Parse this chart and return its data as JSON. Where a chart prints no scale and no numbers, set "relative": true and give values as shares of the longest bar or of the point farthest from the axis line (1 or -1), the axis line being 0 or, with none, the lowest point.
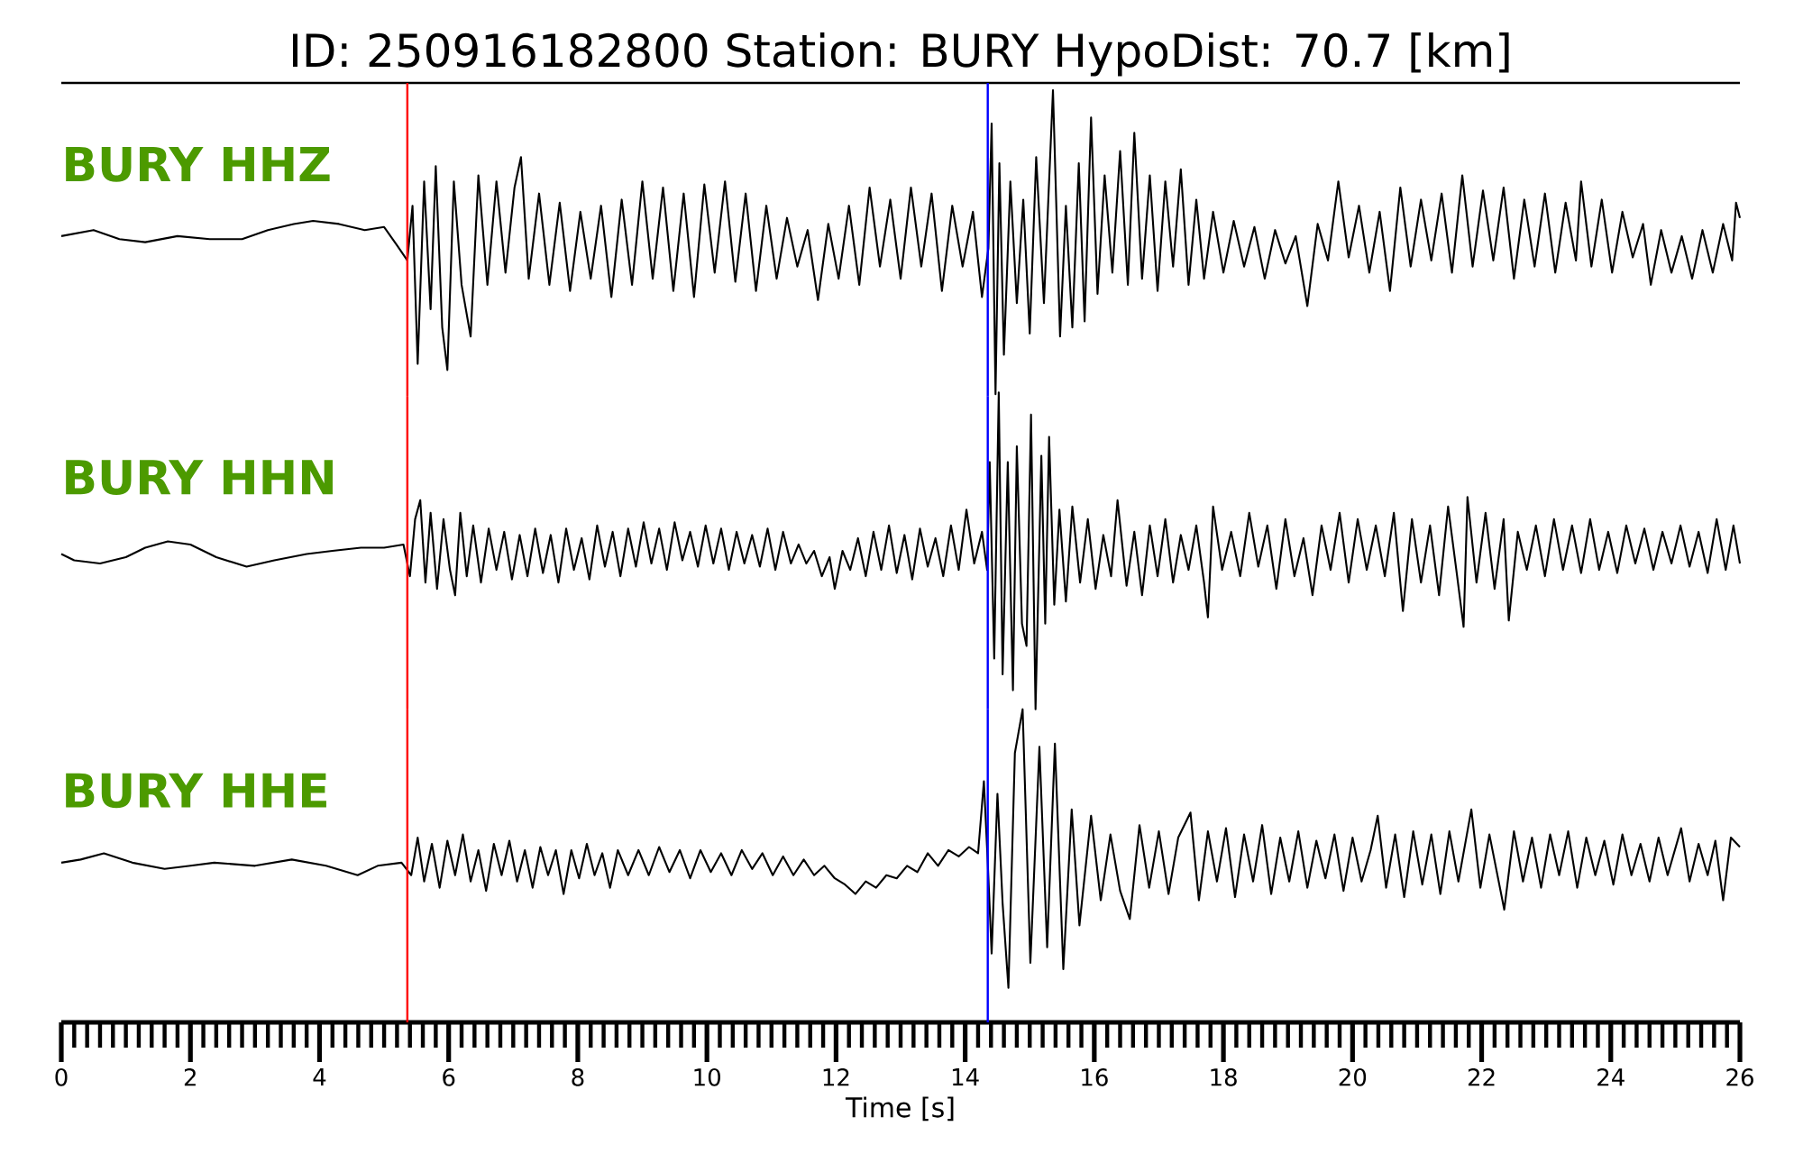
{
  "chart_data": [
    {
      "type": "line",
      "title": "ID: 250916182800   Station: BURY   HypoDist:    70.7 [km]",
      "relative": true,
      "xlim": [
        0,
        26
      ],
      "tick_labels": false,
      "ref_lines": [
        {
          "axis": "x",
          "value": 5.36,
          "color": "#ff0000"
        },
        {
          "axis": "x",
          "value": 14.35,
          "color": "#0000ff"
        }
      ],
      "x": [
        0,
        0.5,
        0.9,
        1.3,
        1.8,
        2.3,
        2.8,
        3.2,
        3.6,
        3.9,
        4.3,
        4.7,
        5.0,
        5.2,
        5.36,
        5.44,
        5.52,
        5.62,
        5.72,
        5.8,
        5.9,
        5.98,
        6.08,
        6.2,
        6.34,
        6.46,
        6.6,
        6.74,
        6.88,
        7.02,
        7.12,
        7.24,
        7.4,
        7.56,
        7.72,
        7.88,
        8.04,
        8.2,
        8.36,
        8.52,
        8.68,
        8.84,
        9.0,
        9.16,
        9.32,
        9.48,
        9.64,
        9.8,
        9.96,
        10.12,
        10.28,
        10.44,
        10.6,
        10.76,
        10.92,
        11.08,
        11.24,
        11.4,
        11.56,
        11.72,
        11.88,
        12.04,
        12.2,
        12.36,
        12.52,
        12.68,
        12.84,
        13.0,
        13.16,
        13.32,
        13.48,
        13.64,
        13.8,
        13.96,
        14.12,
        14.26,
        14.36,
        14.41,
        14.47,
        14.53,
        14.6,
        14.7,
        14.8,
        14.9,
        15.0,
        15.1,
        15.22,
        15.36,
        15.47,
        15.56,
        15.66,
        15.76,
        15.85,
        15.95,
        16.05,
        16.16,
        16.28,
        16.4,
        16.52,
        16.62,
        16.74,
        16.86,
        16.98,
        17.1,
        17.22,
        17.34,
        17.46,
        17.58,
        17.7,
        17.84,
        18.0,
        18.16,
        18.32,
        18.48,
        18.64,
        18.8,
        18.96,
        19.12,
        19.3,
        19.46,
        19.62,
        19.78,
        19.94,
        20.1,
        20.26,
        20.42,
        20.58,
        20.74,
        20.9,
        21.06,
        21.22,
        21.38,
        21.54,
        21.7,
        21.86,
        22.02,
        22.18,
        22.34,
        22.5,
        22.66,
        22.82,
        22.98,
        23.14,
        23.3,
        23.46,
        23.54,
        23.7,
        23.86,
        24.02,
        24.18,
        24.34,
        24.5,
        24.62,
        24.78,
        24.94,
        25.1,
        25.26,
        25.42,
        25.58,
        25.74,
        25.88,
        25.94,
        26.0
      ],
      "series": [
        {
          "name": "BURY HHZ",
          "color": "#000000",
          "values": [
            0.52,
            0.54,
            0.51,
            0.5,
            0.52,
            0.51,
            0.51,
            0.54,
            0.56,
            0.57,
            0.56,
            0.54,
            0.55,
            0.49,
            0.44,
            0.62,
            0.1,
            0.7,
            0.28,
            0.75,
            0.22,
            0.08,
            0.7,
            0.36,
            0.19,
            0.72,
            0.36,
            0.7,
            0.4,
            0.68,
            0.78,
            0.38,
            0.66,
            0.36,
            0.63,
            0.34,
            0.6,
            0.38,
            0.62,
            0.32,
            0.64,
            0.36,
            0.7,
            0.38,
            0.68,
            0.34,
            0.66,
            0.32,
            0.69,
            0.4,
            0.7,
            0.37,
            0.66,
            0.34,
            0.62,
            0.38,
            0.58,
            0.42,
            0.54,
            0.31,
            0.56,
            0.38,
            0.62,
            0.36,
            0.68,
            0.42,
            0.64,
            0.38,
            0.68,
            0.42,
            0.66,
            0.34,
            0.62,
            0.42,
            0.6,
            0.32,
            0.48,
            0.89,
            0.0,
            0.76,
            0.13,
            0.7,
            0.3,
            0.64,
            0.2,
            0.78,
            0.3,
            1.0,
            0.19,
            0.62,
            0.22,
            0.76,
            0.24,
            0.91,
            0.33,
            0.72,
            0.4,
            0.8,
            0.36,
            0.86,
            0.38,
            0.72,
            0.34,
            0.7,
            0.42,
            0.74,
            0.36,
            0.64,
            0.38,
            0.6,
            0.4,
            0.57,
            0.42,
            0.55,
            0.38,
            0.54,
            0.43,
            0.52,
            0.29,
            0.56,
            0.44,
            0.7,
            0.45,
            0.62,
            0.4,
            0.6,
            0.34,
            0.68,
            0.42,
            0.64,
            0.44,
            0.66,
            0.4,
            0.72,
            0.42,
            0.67,
            0.44,
            0.68,
            0.38,
            0.64,
            0.42,
            0.66,
            0.4,
            0.63,
            0.44,
            0.7,
            0.42,
            0.64,
            0.4,
            0.6,
            0.45,
            0.56,
            0.36,
            0.54,
            0.4,
            0.52,
            0.38,
            0.54,
            0.4,
            0.56,
            0.44,
            0.63,
            0.58
          ]
        }
      ]
    },
    {
      "type": "line",
      "relative": true,
      "xlim": [
        0,
        26
      ],
      "tick_labels": false,
      "ref_lines": [
        {
          "axis": "x",
          "value": 5.36,
          "color": "#ff0000"
        },
        {
          "axis": "x",
          "value": 14.35,
          "color": "#0000ff"
        }
      ],
      "x": [
        0,
        0.2,
        0.6,
        1.0,
        1.3,
        1.65,
        2.0,
        2.4,
        2.87,
        3.3,
        3.8,
        4.2,
        4.64,
        5.0,
        5.3,
        5.4,
        5.48,
        5.56,
        5.64,
        5.72,
        5.82,
        5.92,
        6.02,
        6.1,
        6.18,
        6.28,
        6.38,
        6.5,
        6.62,
        6.74,
        6.86,
        6.98,
        7.1,
        7.22,
        7.34,
        7.46,
        7.58,
        7.7,
        7.82,
        7.94,
        8.06,
        8.18,
        8.3,
        8.42,
        8.54,
        8.66,
        8.78,
        8.9,
        9.02,
        9.14,
        9.26,
        9.38,
        9.5,
        9.62,
        9.74,
        9.86,
        9.98,
        10.1,
        10.22,
        10.34,
        10.46,
        10.58,
        10.7,
        10.82,
        10.94,
        11.06,
        11.18,
        11.3,
        11.42,
        11.54,
        11.66,
        11.78,
        11.9,
        11.98,
        12.1,
        12.22,
        12.34,
        12.46,
        12.58,
        12.7,
        12.82,
        12.94,
        13.06,
        13.18,
        13.3,
        13.42,
        13.54,
        13.66,
        13.78,
        13.9,
        14.02,
        14.14,
        14.26,
        14.34,
        14.38,
        14.45,
        14.52,
        14.58,
        14.66,
        14.74,
        14.8,
        14.88,
        14.95,
        15.02,
        15.09,
        15.18,
        15.24,
        15.3,
        15.38,
        15.46,
        15.56,
        15.66,
        15.78,
        15.9,
        16.02,
        16.14,
        16.26,
        16.36,
        16.5,
        16.62,
        16.74,
        16.86,
        16.98,
        17.1,
        17.22,
        17.34,
        17.46,
        17.58,
        17.7,
        17.76,
        17.84,
        17.98,
        18.12,
        18.26,
        18.4,
        18.54,
        18.68,
        18.82,
        18.96,
        19.1,
        19.24,
        19.38,
        19.52,
        19.66,
        19.8,
        19.94,
        20.08,
        20.22,
        20.36,
        20.5,
        20.64,
        20.78,
        20.92,
        21.06,
        21.2,
        21.34,
        21.48,
        21.62,
        21.72,
        21.78,
        21.92,
        22.06,
        22.2,
        22.34,
        22.42,
        22.56,
        22.7,
        22.84,
        22.98,
        23.12,
        23.26,
        23.4,
        23.54,
        23.68,
        23.82,
        23.96,
        24.1,
        24.24,
        24.38,
        24.52,
        24.66,
        24.8,
        24.94,
        25.08,
        25.22,
        25.36,
        25.5,
        25.64,
        25.78,
        25.9,
        26.0
      ],
      "series": [
        {
          "name": "BURY HHN",
          "color": "#000000",
          "values": [
            0.49,
            0.47,
            0.46,
            0.48,
            0.51,
            0.53,
            0.52,
            0.48,
            0.45,
            0.47,
            0.49,
            0.5,
            0.51,
            0.51,
            0.52,
            0.42,
            0.6,
            0.66,
            0.4,
            0.62,
            0.38,
            0.6,
            0.44,
            0.36,
            0.62,
            0.42,
            0.58,
            0.4,
            0.57,
            0.44,
            0.56,
            0.41,
            0.55,
            0.42,
            0.57,
            0.43,
            0.55,
            0.4,
            0.57,
            0.44,
            0.54,
            0.41,
            0.58,
            0.45,
            0.56,
            0.42,
            0.57,
            0.45,
            0.59,
            0.46,
            0.57,
            0.44,
            0.59,
            0.47,
            0.56,
            0.45,
            0.58,
            0.46,
            0.57,
            0.44,
            0.56,
            0.46,
            0.55,
            0.45,
            0.57,
            0.44,
            0.56,
            0.46,
            0.52,
            0.46,
            0.5,
            0.42,
            0.48,
            0.38,
            0.5,
            0.44,
            0.54,
            0.42,
            0.56,
            0.44,
            0.58,
            0.43,
            0.55,
            0.41,
            0.57,
            0.45,
            0.54,
            0.42,
            0.58,
            0.44,
            0.63,
            0.46,
            0.56,
            0.44,
            0.78,
            0.16,
            1.0,
            0.11,
            0.78,
            0.06,
            0.83,
            0.27,
            0.2,
            0.93,
            0.0,
            0.8,
            0.27,
            0.86,
            0.33,
            0.63,
            0.34,
            0.64,
            0.4,
            0.6,
            0.38,
            0.55,
            0.42,
            0.66,
            0.39,
            0.56,
            0.36,
            0.58,
            0.42,
            0.6,
            0.4,
            0.55,
            0.44,
            0.58,
            0.4,
            0.29,
            0.64,
            0.44,
            0.56,
            0.42,
            0.62,
            0.45,
            0.58,
            0.38,
            0.6,
            0.42,
            0.54,
            0.36,
            0.58,
            0.44,
            0.62,
            0.4,
            0.6,
            0.44,
            0.58,
            0.42,
            0.62,
            0.31,
            0.6,
            0.4,
            0.58,
            0.36,
            0.64,
            0.42,
            0.26,
            0.67,
            0.4,
            0.62,
            0.38,
            0.6,
            0.28,
            0.56,
            0.44,
            0.58,
            0.42,
            0.6,
            0.44,
            0.58,
            0.43,
            0.6,
            0.44,
            0.56,
            0.43,
            0.58,
            0.46,
            0.57,
            0.44,
            0.56,
            0.46,
            0.58,
            0.45,
            0.56,
            0.43,
            0.6,
            0.44,
            0.58,
            0.46
          ]
        }
      ]
    },
    {
      "type": "line",
      "relative": true,
      "xlim": [
        0,
        26
      ],
      "xlabel": "Time [s]",
      "ref_lines": [
        {
          "axis": "x",
          "value": 5.36,
          "color": "#ff0000"
        },
        {
          "axis": "x",
          "value": 14.35,
          "color": "#0000ff"
        }
      ],
      "xticks": [
        0,
        {
          "value": 0.2,
          "label": null
        },
        {
          "value": 0.4,
          "label": null
        },
        {
          "value": 0.6,
          "label": null
        },
        {
          "value": 0.8,
          "label": null
        },
        {
          "value": 1,
          "label": null
        },
        {
          "value": 1.2,
          "label": null
        },
        {
          "value": 1.4,
          "label": null
        },
        {
          "value": 1.6,
          "label": null
        },
        {
          "value": 1.8,
          "label": null
        },
        2,
        {
          "value": 2.2,
          "label": null
        },
        {
          "value": 2.4,
          "label": null
        },
        {
          "value": 2.6,
          "label": null
        },
        {
          "value": 2.8,
          "label": null
        },
        {
          "value": 3,
          "label": null
        },
        {
          "value": 3.2,
          "label": null
        },
        {
          "value": 3.4,
          "label": null
        },
        {
          "value": 3.6,
          "label": null
        },
        {
          "value": 3.8,
          "label": null
        },
        4,
        {
          "value": 4.2,
          "label": null
        },
        {
          "value": 4.4,
          "label": null
        },
        {
          "value": 4.6,
          "label": null
        },
        {
          "value": 4.8,
          "label": null
        },
        {
          "value": 5,
          "label": null
        },
        {
          "value": 5.2,
          "label": null
        },
        {
          "value": 5.4,
          "label": null
        },
        {
          "value": 5.6,
          "label": null
        },
        {
          "value": 5.8,
          "label": null
        },
        6,
        {
          "value": 6.2,
          "label": null
        },
        {
          "value": 6.4,
          "label": null
        },
        {
          "value": 6.6,
          "label": null
        },
        {
          "value": 6.8,
          "label": null
        },
        {
          "value": 7,
          "label": null
        },
        {
          "value": 7.2,
          "label": null
        },
        {
          "value": 7.4,
          "label": null
        },
        {
          "value": 7.6,
          "label": null
        },
        {
          "value": 7.8,
          "label": null
        },
        8,
        {
          "value": 8.2,
          "label": null
        },
        {
          "value": 8.4,
          "label": null
        },
        {
          "value": 8.6,
          "label": null
        },
        {
          "value": 8.8,
          "label": null
        },
        {
          "value": 9,
          "label": null
        },
        {
          "value": 9.2,
          "label": null
        },
        {
          "value": 9.4,
          "label": null
        },
        {
          "value": 9.6,
          "label": null
        },
        {
          "value": 9.8,
          "label": null
        },
        10,
        {
          "value": 10.2,
          "label": null
        },
        {
          "value": 10.4,
          "label": null
        },
        {
          "value": 10.6,
          "label": null
        },
        {
          "value": 10.8,
          "label": null
        },
        {
          "value": 11,
          "label": null
        },
        {
          "value": 11.2,
          "label": null
        },
        {
          "value": 11.4,
          "label": null
        },
        {
          "value": 11.6,
          "label": null
        },
        {
          "value": 11.8,
          "label": null
        },
        12,
        {
          "value": 12.2,
          "label": null
        },
        {
          "value": 12.4,
          "label": null
        },
        {
          "value": 12.6,
          "label": null
        },
        {
          "value": 12.8,
          "label": null
        },
        {
          "value": 13,
          "label": null
        },
        {
          "value": 13.2,
          "label": null
        },
        {
          "value": 13.4,
          "label": null
        },
        {
          "value": 13.6,
          "label": null
        },
        {
          "value": 13.8,
          "label": null
        },
        14,
        {
          "value": 14.2,
          "label": null
        },
        {
          "value": 14.4,
          "label": null
        },
        {
          "value": 14.6,
          "label": null
        },
        {
          "value": 14.8,
          "label": null
        },
        {
          "value": 15,
          "label": null
        },
        {
          "value": 15.2,
          "label": null
        },
        {
          "value": 15.4,
          "label": null
        },
        {
          "value": 15.6,
          "label": null
        },
        {
          "value": 15.8,
          "label": null
        },
        16,
        {
          "value": 16.2,
          "label": null
        },
        {
          "value": 16.4,
          "label": null
        },
        {
          "value": 16.6,
          "label": null
        },
        {
          "value": 16.8,
          "label": null
        },
        {
          "value": 17,
          "label": null
        },
        {
          "value": 17.2,
          "label": null
        },
        {
          "value": 17.4,
          "label": null
        },
        {
          "value": 17.6,
          "label": null
        },
        {
          "value": 17.8,
          "label": null
        },
        18,
        {
          "value": 18.2,
          "label": null
        },
        {
          "value": 18.4,
          "label": null
        },
        {
          "value": 18.6,
          "label": null
        },
        {
          "value": 18.8,
          "label": null
        },
        {
          "value": 19,
          "label": null
        },
        {
          "value": 19.2,
          "label": null
        },
        {
          "value": 19.4,
          "label": null
        },
        {
          "value": 19.6,
          "label": null
        },
        {
          "value": 19.8,
          "label": null
        },
        20,
        {
          "value": 20.2,
          "label": null
        },
        {
          "value": 20.4,
          "label": null
        },
        {
          "value": 20.6,
          "label": null
        },
        {
          "value": 20.8,
          "label": null
        },
        {
          "value": 21,
          "label": null
        },
        {
          "value": 21.2,
          "label": null
        },
        {
          "value": 21.4,
          "label": null
        },
        {
          "value": 21.6,
          "label": null
        },
        {
          "value": 21.8,
          "label": null
        },
        22,
        {
          "value": 22.2,
          "label": null
        },
        {
          "value": 22.4,
          "label": null
        },
        {
          "value": 22.6,
          "label": null
        },
        {
          "value": 22.8,
          "label": null
        },
        {
          "value": 23,
          "label": null
        },
        {
          "value": 23.2,
          "label": null
        },
        {
          "value": 23.4,
          "label": null
        },
        {
          "value": 23.6,
          "label": null
        },
        {
          "value": 23.8,
          "label": null
        },
        24,
        {
          "value": 24.2,
          "label": null
        },
        {
          "value": 24.4,
          "label": null
        },
        {
          "value": 24.6,
          "label": null
        },
        {
          "value": 24.8,
          "label": null
        },
        {
          "value": 25,
          "label": null
        },
        {
          "value": 25.2,
          "label": null
        },
        {
          "value": 25.4,
          "label": null
        },
        {
          "value": 25.6,
          "label": null
        },
        {
          "value": 25.8,
          "label": null
        },
        26
      ],
      "x": [
        0,
        0.3,
        0.66,
        1.1,
        1.6,
        2.0,
        2.37,
        3.0,
        3.57,
        4.1,
        4.59,
        4.9,
        5.27,
        5.42,
        5.52,
        5.62,
        5.74,
        5.86,
        5.98,
        6.1,
        6.22,
        6.34,
        6.46,
        6.58,
        6.7,
        6.82,
        6.94,
        7.06,
        7.18,
        7.3,
        7.42,
        7.54,
        7.66,
        7.78,
        7.9,
        8.02,
        8.14,
        8.26,
        8.38,
        8.5,
        8.62,
        8.78,
        8.94,
        9.1,
        9.26,
        9.42,
        9.58,
        9.74,
        9.9,
        10.06,
        10.22,
        10.38,
        10.54,
        10.7,
        10.86,
        11.02,
        11.18,
        11.34,
        11.5,
        11.66,
        11.82,
        11.98,
        12.14,
        12.3,
        12.46,
        12.62,
        12.78,
        12.94,
        13.1,
        13.26,
        13.42,
        13.58,
        13.74,
        13.9,
        14.06,
        14.2,
        14.29,
        14.35,
        14.41,
        14.5,
        14.58,
        14.67,
        14.77,
        14.89,
        15.01,
        15.15,
        15.27,
        15.39,
        15.52,
        15.65,
        15.77,
        15.95,
        16.1,
        16.25,
        16.4,
        16.55,
        16.7,
        16.85,
        17.0,
        17.15,
        17.3,
        17.49,
        17.62,
        17.76,
        17.9,
        18.04,
        18.18,
        18.32,
        18.46,
        18.6,
        18.74,
        18.88,
        19.02,
        19.16,
        19.3,
        19.44,
        19.58,
        19.72,
        19.86,
        20.0,
        20.14,
        20.28,
        20.39,
        20.52,
        20.66,
        20.8,
        20.94,
        21.08,
        21.22,
        21.36,
        21.5,
        21.64,
        21.84,
        21.98,
        22.12,
        22.35,
        22.5,
        22.64,
        22.78,
        22.92,
        23.06,
        23.2,
        23.34,
        23.48,
        23.62,
        23.76,
        23.9,
        24.04,
        24.18,
        24.32,
        24.46,
        24.6,
        24.74,
        24.88,
        25.09,
        25.22,
        25.36,
        25.5,
        25.62,
        25.74,
        25.86,
        26.0
      ],
      "series": [
        {
          "name": "BURY HHE",
          "color": "#000000",
          "values": [
            0.51,
            0.52,
            0.54,
            0.51,
            0.49,
            0.5,
            0.51,
            0.5,
            0.52,
            0.5,
            0.47,
            0.5,
            0.51,
            0.47,
            0.59,
            0.45,
            0.57,
            0.43,
            0.58,
            0.47,
            0.6,
            0.45,
            0.55,
            0.42,
            0.57,
            0.47,
            0.58,
            0.45,
            0.55,
            0.43,
            0.56,
            0.47,
            0.55,
            0.41,
            0.55,
            0.46,
            0.57,
            0.47,
            0.54,
            0.43,
            0.55,
            0.47,
            0.55,
            0.47,
            0.56,
            0.48,
            0.55,
            0.46,
            0.55,
            0.48,
            0.54,
            0.47,
            0.55,
            0.49,
            0.54,
            0.47,
            0.53,
            0.47,
            0.52,
            0.47,
            0.5,
            0.46,
            0.44,
            0.41,
            0.45,
            0.43,
            0.47,
            0.46,
            0.5,
            0.48,
            0.54,
            0.5,
            0.55,
            0.53,
            0.56,
            0.54,
            0.77,
            0.51,
            0.22,
            0.73,
            0.38,
            0.11,
            0.86,
            1.0,
            0.19,
            0.88,
            0.24,
            0.89,
            0.17,
            0.68,
            0.31,
            0.66,
            0.39,
            0.6,
            0.42,
            0.33,
            0.63,
            0.43,
            0.61,
            0.41,
            0.59,
            0.67,
            0.39,
            0.61,
            0.45,
            0.62,
            0.4,
            0.6,
            0.45,
            0.63,
            0.41,
            0.59,
            0.45,
            0.61,
            0.43,
            0.58,
            0.46,
            0.6,
            0.42,
            0.59,
            0.45,
            0.55,
            0.66,
            0.43,
            0.6,
            0.4,
            0.61,
            0.44,
            0.6,
            0.41,
            0.61,
            0.45,
            0.68,
            0.43,
            0.6,
            0.36,
            0.61,
            0.45,
            0.59,
            0.43,
            0.6,
            0.47,
            0.61,
            0.43,
            0.59,
            0.47,
            0.58,
            0.44,
            0.6,
            0.47,
            0.57,
            0.45,
            0.59,
            0.47,
            0.62,
            0.45,
            0.57,
            0.47,
            0.58,
            0.39,
            0.59,
            0.56
          ]
        }
      ]
    }
  ]
}
